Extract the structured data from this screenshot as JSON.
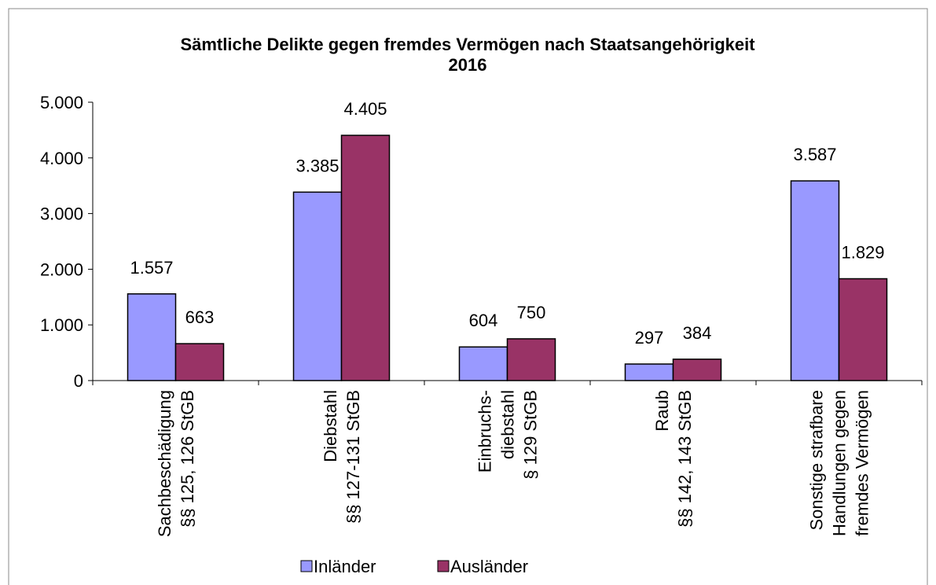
{
  "chart_data": {
    "type": "bar",
    "title": "Sämtliche Delikte gegen fremdes Vermögen nach Staatsangehörigkeit\n2016",
    "categories": [
      "Sachbeschädigung\n§§ 125, 126 StGB",
      "Diebstahl\n§§ 127-131 StGB",
      "Einbruchs-\ndiebstahl\n§ 129 StGB",
      "Raub\n§§ 142, 143 StGB",
      "Sonstige strafbare\nHandlungen gegen\nfremdes Vermögen"
    ],
    "series": [
      {
        "name": "Inländer",
        "color": "#9999ff",
        "values": [
          1557,
          3385,
          604,
          297,
          3587
        ],
        "value_labels": [
          "1.557",
          "3.385",
          "604",
          "297",
          "3.587"
        ]
      },
      {
        "name": "Ausländer",
        "color": "#993366",
        "values": [
          663,
          4405,
          750,
          384,
          1829
        ],
        "value_labels": [
          "663",
          "4.405",
          "750",
          "384",
          "1.829"
        ]
      }
    ],
    "ylim": [
      0,
      5000
    ],
    "yticks": [
      0,
      {
        "value": 1000,
        "label": "1.000"
      },
      {
        "value": 2000,
        "label": "2.000"
      },
      {
        "value": 3000,
        "label": "3.000"
      },
      {
        "value": 4000,
        "label": "4.000"
      },
      {
        "value": 5000,
        "label": "5.000"
      }
    ],
    "legend": "bottom"
  }
}
